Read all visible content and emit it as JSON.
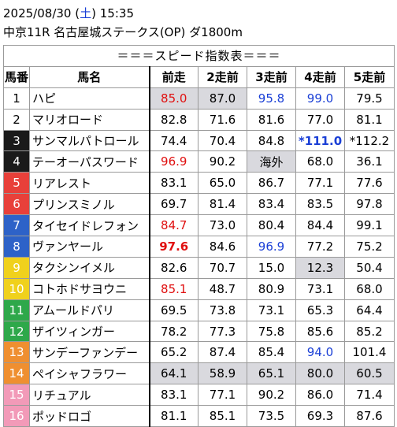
{
  "header": {
    "date": "2025/08/30",
    "weekday_open": "(",
    "weekday": "土",
    "weekday_close": ")",
    "time": "15:35",
    "race": "中京11R 名古屋城ステークス(OP) ダ1800m"
  },
  "table": {
    "title": "＝＝＝スピード指数表＝＝＝",
    "columns": [
      "馬番",
      "馬名",
      "前走",
      "2走前",
      "3走前",
      "4走前",
      "5走前"
    ],
    "rows": [
      {
        "no": "1",
        "name": "ハピ",
        "vals": [
          "85.0",
          "87.0",
          "95.8",
          "99.0",
          "79.5"
        ]
      },
      {
        "no": "2",
        "name": "マリオロード",
        "vals": [
          "82.8",
          "71.6",
          "81.6",
          "77.0",
          "81.1"
        ]
      },
      {
        "no": "3",
        "name": "サンマルパトロール",
        "vals": [
          "74.4",
          "70.4",
          "84.8",
          "*111.0",
          "*112.2"
        ]
      },
      {
        "no": "4",
        "name": "テーオーパスワード",
        "vals": [
          "96.9",
          "90.2",
          "海外",
          "68.0",
          "36.1"
        ]
      },
      {
        "no": "5",
        "name": "リアレスト",
        "vals": [
          "83.1",
          "65.0",
          "86.7",
          "77.1",
          "77.6"
        ]
      },
      {
        "no": "6",
        "name": "プリンスミノル",
        "vals": [
          "69.7",
          "81.4",
          "83.4",
          "83.5",
          "97.8"
        ]
      },
      {
        "no": "7",
        "name": "タイセイドレフォン",
        "vals": [
          "84.7",
          "73.0",
          "80.4",
          "84.4",
          "99.1"
        ]
      },
      {
        "no": "8",
        "name": "ヴァンヤール",
        "vals": [
          "97.6",
          "84.6",
          "96.9",
          "77.2",
          "75.2"
        ]
      },
      {
        "no": "9",
        "name": "タクシンイメル",
        "vals": [
          "82.6",
          "70.7",
          "15.0",
          "12.3",
          "50.4"
        ]
      },
      {
        "no": "10",
        "name": "コトホドサヨウニ",
        "vals": [
          "85.1",
          "48.7",
          "80.9",
          "73.1",
          "68.0"
        ]
      },
      {
        "no": "11",
        "name": "アムールドパリ",
        "vals": [
          "69.5",
          "73.8",
          "73.1",
          "65.3",
          "64.4"
        ]
      },
      {
        "no": "12",
        "name": "ザイツィンガー",
        "vals": [
          "78.2",
          "77.3",
          "75.8",
          "85.6",
          "85.2"
        ]
      },
      {
        "no": "13",
        "name": "サンデーファンデー",
        "vals": [
          "65.2",
          "87.4",
          "85.4",
          "94.0",
          "101.4"
        ]
      },
      {
        "no": "14",
        "name": "ペイシャフラワー",
        "vals": [
          "64.1",
          "58.9",
          "65.1",
          "80.0",
          "60.5"
        ]
      },
      {
        "no": "15",
        "name": "リチュアル",
        "vals": [
          "83.1",
          "77.1",
          "90.2",
          "86.0",
          "71.4"
        ]
      },
      {
        "no": "16",
        "name": "ポッドロゴ",
        "vals": [
          "81.1",
          "85.1",
          "73.5",
          "69.3",
          "87.6"
        ]
      }
    ]
  },
  "frame_colors": {
    "1": {
      "bg": "#ffffff",
      "fg": "#000000"
    },
    "2": {
      "bg": "#ffffff",
      "fg": "#000000"
    },
    "3": {
      "bg": "#1a1a1a",
      "fg": "#ffffff"
    },
    "4": {
      "bg": "#1a1a1a",
      "fg": "#ffffff"
    },
    "5": {
      "bg": "#e8403a",
      "fg": "#ffffff"
    },
    "6": {
      "bg": "#e8403a",
      "fg": "#ffffff"
    },
    "7": {
      "bg": "#2d62c8",
      "fg": "#ffffff"
    },
    "8": {
      "bg": "#2d62c8",
      "fg": "#ffffff"
    },
    "9": {
      "bg": "#f0d11c",
      "fg": "#ffffff"
    },
    "10": {
      "bg": "#f0d11c",
      "fg": "#ffffff"
    },
    "11": {
      "bg": "#2ea84a",
      "fg": "#ffffff"
    },
    "12": {
      "bg": "#2ea84a",
      "fg": "#ffffff"
    },
    "13": {
      "bg": "#ef8f30",
      "fg": "#ffffff"
    },
    "14": {
      "bg": "#ef8f30",
      "fg": "#ffffff"
    },
    "15": {
      "bg": "#f29ab8",
      "fg": "#ffffff"
    },
    "16": {
      "bg": "#f29ab8",
      "fg": "#ffffff"
    }
  },
  "highlights": {
    "red": [
      "1-0",
      "4-0",
      "7-0",
      "8-0",
      "10-0"
    ],
    "blue": [
      "1-2",
      "1-3",
      "3-3",
      "8-2",
      "13-3"
    ],
    "bold": [
      "3-3",
      "8-0"
    ],
    "gray": [
      "1-0",
      "1-1",
      "4-2",
      "9-3",
      "14-0",
      "14-1",
      "14-2",
      "14-3",
      "14-4"
    ]
  }
}
